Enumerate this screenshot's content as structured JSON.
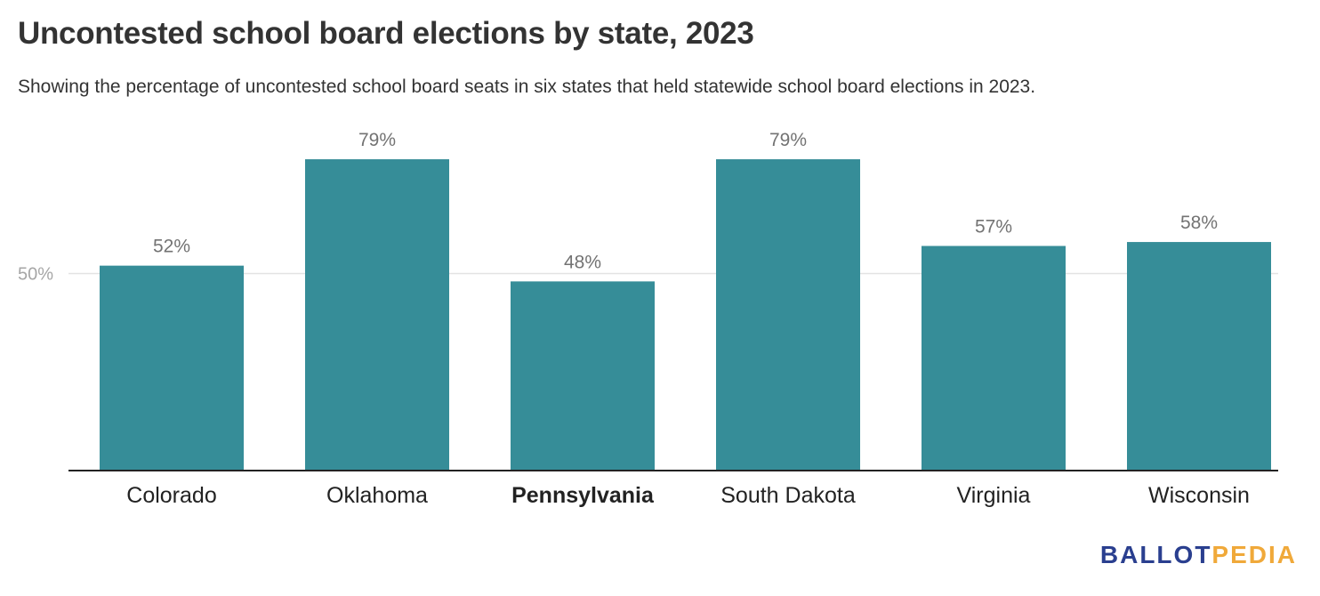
{
  "chart_data": {
    "type": "bar",
    "title": "Uncontested school board elections by state, 2023",
    "subtitle": "Showing the percentage of uncontested school board seats in six states that held statewide school board elections in 2023.",
    "categories": [
      "Colorado",
      "Oklahoma",
      "Pennsylvania",
      "South Dakota",
      "Virginia",
      "Wisconsin"
    ],
    "values": [
      52,
      79,
      48,
      79,
      57,
      58
    ],
    "value_labels": [
      "52%",
      "79%",
      "48%",
      "79%",
      "57%",
      "58%"
    ],
    "highlighted_category": "Pennsylvania",
    "xlabel": "",
    "ylabel": "",
    "ylim": [
      0,
      100
    ],
    "yticks": [
      50
    ],
    "ytick_labels": [
      "50%"
    ],
    "grid": true,
    "legend": "none",
    "bar_color": "#368d98"
  },
  "logo": {
    "part1": "BALLOT",
    "part2": "PEDIA",
    "color_part1": "#2a3f8f",
    "color_part2": "#f0a93a"
  }
}
